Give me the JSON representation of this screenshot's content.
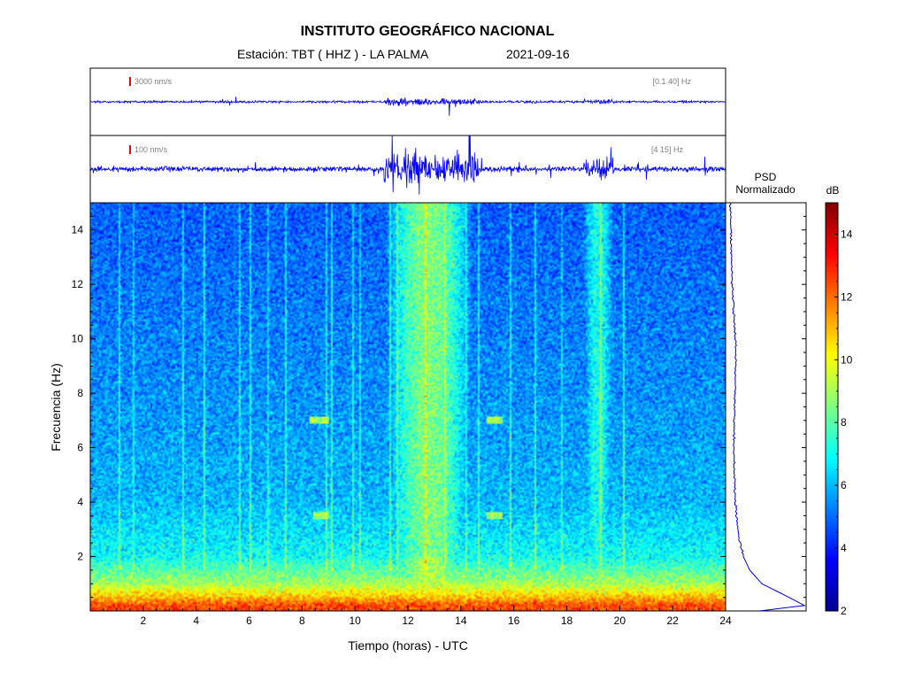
{
  "header": {
    "title": "INSTITUTO GEOGRÁFICO NACIONAL",
    "station": "Estación:  TBT ( HHZ ) - LA PALMA",
    "date": "2021-09-16"
  },
  "traces": [
    {
      "scale_label": "3000 nm/s",
      "band_label": "[0.1 40]  Hz"
    },
    {
      "scale_label": "100 nm/s",
      "band_label": "[4 15]  Hz"
    }
  ],
  "psd_panel": {
    "title_line1": "PSD",
    "title_line2": "Normalizado"
  },
  "colorbar": {
    "label": "dB"
  },
  "colors": {
    "trace": "#0000ff",
    "scale_marker": "#ff0000",
    "psd_line": "#0000cc"
  },
  "chart_data": {
    "type": "heatmap",
    "xlabel": "Tiempo (horas) - UTC",
    "ylabel": "Frecuencia  (Hz)",
    "xlim": [
      0,
      24
    ],
    "ylim": [
      0,
      15
    ],
    "xticks": [
      2,
      4,
      6,
      8,
      10,
      12,
      14,
      16,
      18,
      20,
      22,
      24
    ],
    "yticks": [
      2,
      4,
      6,
      8,
      10,
      12,
      14
    ],
    "colorbar_range": [
      2,
      15
    ],
    "colorbar_ticks": [
      2,
      4,
      6,
      8,
      10,
      12,
      14
    ],
    "colormap": "jet",
    "background_db_by_frequency": [
      {
        "freq_hz": 0.2,
        "db": 12.5
      },
      {
        "freq_hz": 0.5,
        "db": 11.0
      },
      {
        "freq_hz": 1.0,
        "db": 9.0
      },
      {
        "freq_hz": 2.0,
        "db": 7.0
      },
      {
        "freq_hz": 4.0,
        "db": 6.0
      },
      {
        "freq_hz": 8.0,
        "db": 5.5
      },
      {
        "freq_hz": 15.0,
        "db": 4.8
      }
    ],
    "high_energy_intervals_hours": [
      {
        "start": 11.0,
        "end": 14.6,
        "level_db": 8.5
      },
      {
        "start": 18.5,
        "end": 19.9,
        "level_db": 7.2
      }
    ],
    "transient_lines_hours": [
      1.1,
      1.6,
      3.5,
      4.3,
      5.6,
      6.0,
      6.7,
      7.4,
      8.9,
      9.1,
      9.9,
      10.2,
      11.3,
      11.6,
      12.7,
      13.4,
      14.2,
      14.7,
      15.9,
      16.8,
      17.8,
      19.3,
      20.2
    ],
    "harmonic_patches": [
      {
        "start_hours": 8.4,
        "end_hours": 9.0,
        "freq_hz": 3.5
      },
      {
        "start_hours": 15.0,
        "end_hours": 15.6,
        "freq_hz": 3.5
      },
      {
        "start_hours": 8.3,
        "end_hours": 9.0,
        "freq_hz": 7.0
      },
      {
        "start_hours": 15.0,
        "end_hours": 15.6,
        "freq_hz": 7.0
      }
    ],
    "psd_normalized_profile": [
      {
        "freq_hz": 0.0,
        "value": 0.42
      },
      {
        "freq_hz": 0.2,
        "value": 0.98
      },
      {
        "freq_hz": 0.6,
        "value": 0.72
      },
      {
        "freq_hz": 1.0,
        "value": 0.45
      },
      {
        "freq_hz": 1.5,
        "value": 0.3
      },
      {
        "freq_hz": 2.0,
        "value": 0.22
      },
      {
        "freq_hz": 3.0,
        "value": 0.15
      },
      {
        "freq_hz": 4.0,
        "value": 0.12
      },
      {
        "freq_hz": 6.0,
        "value": 0.1
      },
      {
        "freq_hz": 9.5,
        "value": 0.13
      },
      {
        "freq_hz": 12.0,
        "value": 0.08
      },
      {
        "freq_hz": 15.0,
        "value": 0.06
      }
    ],
    "trace_events_hours": [
      {
        "start": 11.1,
        "end": 12.9,
        "relative_amplitude": 1.0
      },
      {
        "start": 13.0,
        "end": 14.7,
        "relative_amplitude": 0.85
      },
      {
        "start": 18.6,
        "end": 19.8,
        "relative_amplitude": 0.55
      }
    ]
  }
}
